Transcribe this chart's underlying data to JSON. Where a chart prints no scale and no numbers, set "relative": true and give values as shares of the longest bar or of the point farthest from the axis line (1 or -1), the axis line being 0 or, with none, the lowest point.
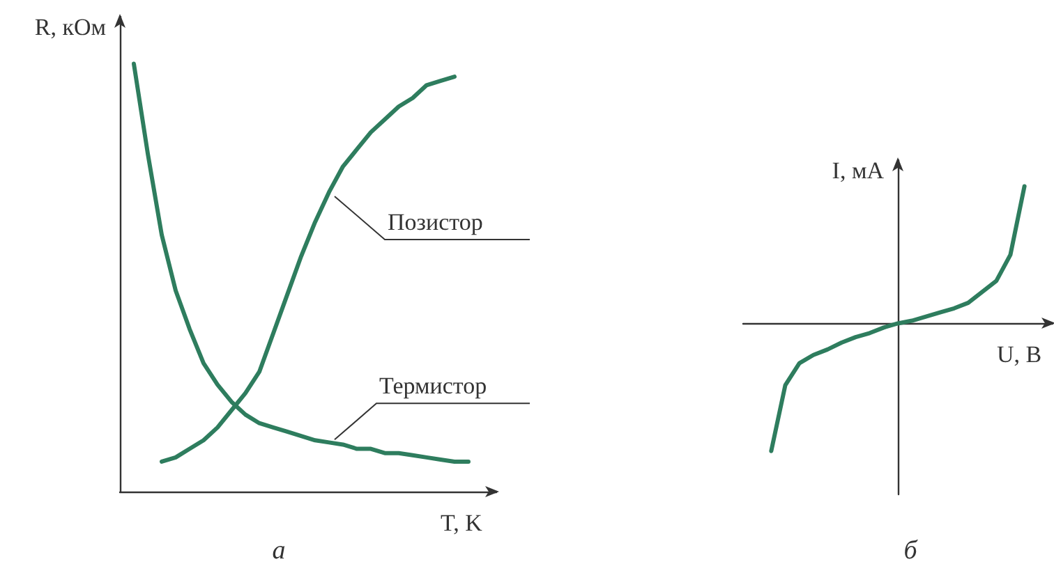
{
  "chart_data": [
    {
      "type": "line",
      "relative": true,
      "title": "а",
      "xlabel": "T, K",
      "ylabel": "R, кОм",
      "legend": false,
      "grid": false,
      "marker": "none",
      "line_style": "solid",
      "categories": [
        null,
        null,
        null,
        null,
        null,
        null,
        null,
        null,
        null,
        null,
        null,
        null,
        null,
        null,
        null,
        null,
        null,
        null,
        null,
        null,
        null,
        null,
        null,
        null,
        null,
        null,
        null,
        null
      ],
      "series": [
        {
          "name": "Позистор",
          "color": "#2e7d5e",
          "values": [
            null,
            null,
            null,
            0.07,
            0.08,
            0.1,
            0.12,
            0.15,
            0.19,
            0.23,
            0.28,
            0.37,
            0.46,
            0.55,
            0.63,
            0.7,
            0.76,
            0.8,
            0.84,
            0.87,
            0.9,
            0.92,
            0.95,
            0.96,
            0.97,
            null,
            null,
            null
          ]
        },
        {
          "name": "Термистор",
          "color": "#2e7d5e",
          "values": [
            null,
            1,
            0.79,
            0.6,
            0.47,
            0.38,
            0.3,
            0.25,
            0.21,
            0.18,
            0.16,
            0.15,
            0.14,
            0.13,
            0.12,
            0.115,
            0.11,
            0.1,
            0.1,
            0.09,
            0.09,
            0.085,
            0.08,
            0.075,
            0.07,
            0.07,
            null,
            null
          ]
        }
      ]
    },
    {
      "type": "line",
      "relative": true,
      "title": "б",
      "xlabel": "U, В",
      "ylabel": "I, мА",
      "legend": false,
      "grid": false,
      "marker": "none",
      "line_style": "solid",
      "categories": [
        null,
        null,
        null,
        null,
        null,
        null,
        null,
        null,
        null,
        null,
        null,
        null,
        null,
        null,
        null,
        null,
        null,
        null,
        null,
        null,
        null,
        null,
        null
      ],
      "series": [
        {
          "color": "#2e7d5e",
          "values": [
            null,
            null,
            -0.93,
            -0.45,
            -0.29,
            -0.23,
            -0.19,
            -0.14,
            -0.1,
            -0.07,
            -0.03,
            0,
            0.02,
            0.05,
            0.08,
            0.11,
            0.15,
            0.23,
            0.31,
            0.5,
            1,
            null,
            null
          ]
        }
      ]
    }
  ]
}
